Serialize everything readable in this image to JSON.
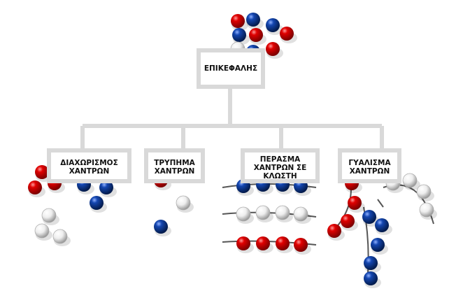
{
  "root": {
    "label": "ΕΠΙΚΕΦΑΛΗΣ"
  },
  "children": [
    {
      "label": "ΔΙΑΧΩΡΙΣΜΟΣ\nΧΑΝΤΡΩΝ"
    },
    {
      "label": "ΤΡΥΠΗΜΑ\nΧΑΝΤΡΩΝ"
    },
    {
      "label": "ΠΕΡΑΣΜΑ\nΧΑΝΤΡΩΝ ΣΕ\nΚΛΩΣΤΗ"
    },
    {
      "label": "ΓΥΑΛΙΣΜΑ\nΧΑΝΤΡΩΝ"
    }
  ],
  "colors": {
    "red": "#d90000",
    "blue": "#0a3d9c",
    "clear": "#e8e8e8",
    "connector": "#d9d9d9"
  }
}
